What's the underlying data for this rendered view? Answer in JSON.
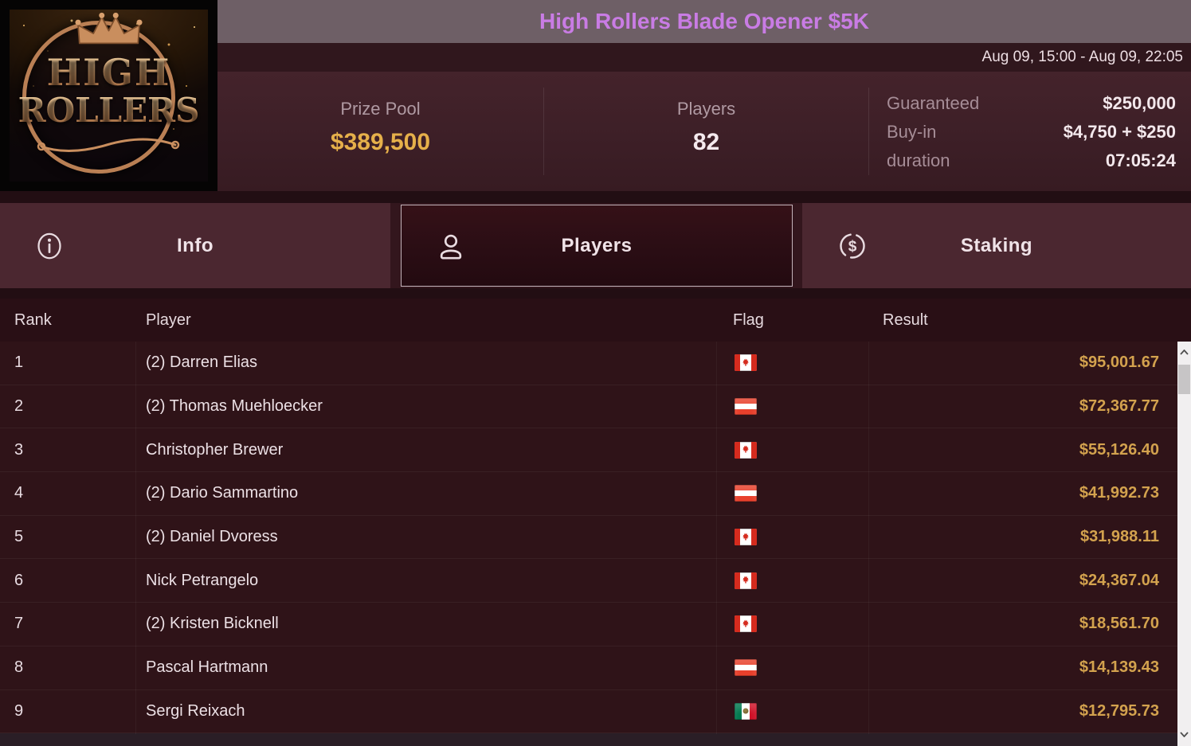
{
  "logo": {
    "line1": "HIGH",
    "line2": "ROLLERS"
  },
  "header": {
    "title": "High Rollers Blade Opener $5K",
    "date_range": "Aug 09, 15:00 - Aug 09, 22:05"
  },
  "stats": {
    "prize_pool_label": "Prize Pool",
    "prize_pool_value": "$389,500",
    "players_label": "Players",
    "players_value": "82",
    "details": [
      {
        "label": "Guaranteed",
        "value": "$250,000"
      },
      {
        "label": "Buy-in",
        "value": "$4,750 + $250"
      },
      {
        "label": "duration",
        "value": "07:05:24"
      }
    ]
  },
  "tabs": [
    {
      "label": "Info",
      "icon": "info-icon",
      "selected": false
    },
    {
      "label": "Players",
      "icon": "user-icon",
      "selected": true
    },
    {
      "label": "Staking",
      "icon": "dollar-circle-icon",
      "selected": false
    }
  ],
  "table": {
    "columns": [
      "Rank",
      "Player",
      "Flag",
      "Result"
    ],
    "rows": [
      {
        "rank": "1",
        "player": "(2) Darren Elias",
        "flag": "canada",
        "result": "$95,001.67"
      },
      {
        "rank": "2",
        "player": "(2) Thomas Muehloecker",
        "flag": "austria",
        "result": "$72,367.77"
      },
      {
        "rank": "3",
        "player": "Christopher Brewer",
        "flag": "canada",
        "result": "$55,126.40"
      },
      {
        "rank": "4",
        "player": "(2) Dario Sammartino",
        "flag": "austria",
        "result": "$41,992.73"
      },
      {
        "rank": "5",
        "player": "(2) Daniel Dvoress",
        "flag": "canada",
        "result": "$31,988.11"
      },
      {
        "rank": "6",
        "player": "Nick Petrangelo",
        "flag": "canada",
        "result": "$24,367.04"
      },
      {
        "rank": "7",
        "player": "(2) Kristen Bicknell",
        "flag": "canada",
        "result": "$18,561.70"
      },
      {
        "rank": "8",
        "player": "Pascal Hartmann",
        "flag": "austria",
        "result": "$14,139.43"
      },
      {
        "rank": "9",
        "player": "Sergi Reixach",
        "flag": "mexico",
        "result": "$12,795.73"
      }
    ]
  },
  "scrollbar": {
    "up_icon": "chevron-up-icon",
    "down_icon": "chevron-down-icon"
  },
  "colors": {
    "title_purple": "#c97ce4",
    "title_bar_bg": "#6e5f66",
    "result_gold": "#d3a24e",
    "prize_gold": "#e6b04a",
    "tab_bg": "#4b2730",
    "selected_tab_bg": "#2c0e15",
    "row_bg": "#2f1318",
    "panel_bg": "#3d1f27"
  }
}
